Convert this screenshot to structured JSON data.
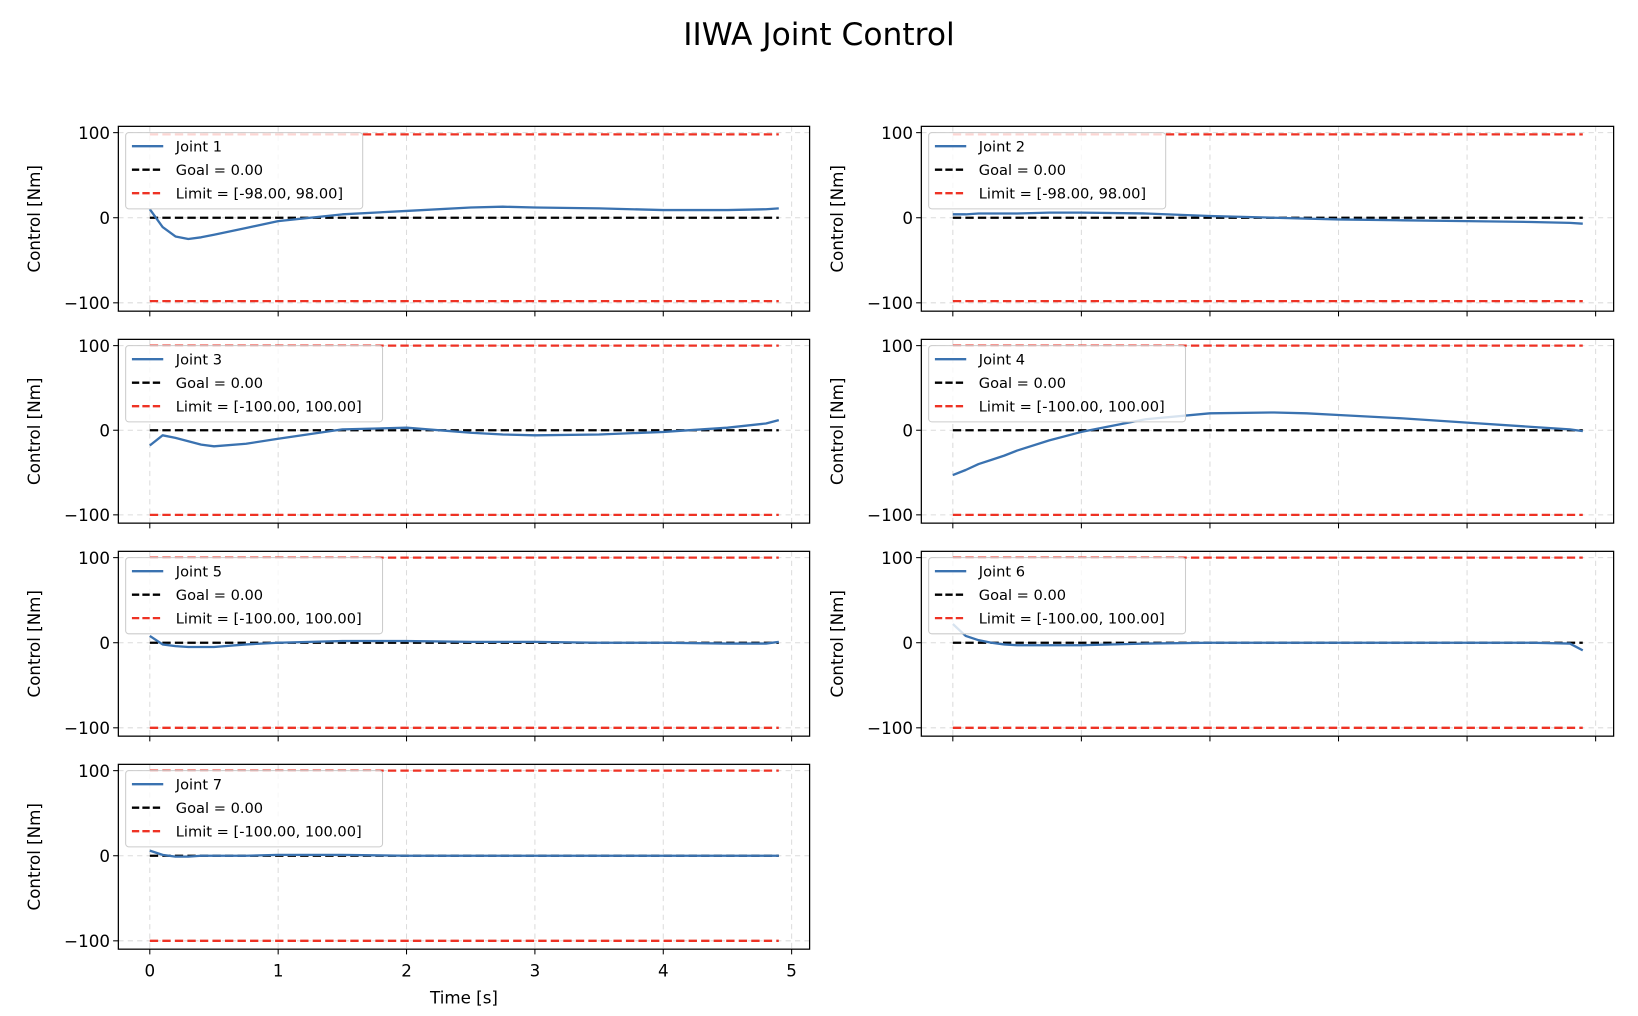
{
  "chart_data": {
    "title": "IIWA Joint Control",
    "type": "line",
    "xlabel": "Time [s]",
    "ylabel": "Control [Nm]",
    "xlim": [
      -0.245,
      5.14
    ],
    "ylim": [
      -109.8,
      107.4
    ],
    "xticks": [
      0,
      1,
      2,
      3,
      4,
      5
    ],
    "yticks": [
      100,
      0,
      -100
    ],
    "ytick_labels": [
      "100",
      "0",
      "−100"
    ],
    "grid": true,
    "legend_placement": "upper-left",
    "colors": {
      "series": "#3a72b0",
      "goal": "#000000",
      "limit": "#ee3224"
    },
    "x": [
      0,
      0.1,
      0.2,
      0.3,
      0.4,
      0.5,
      0.75,
      1,
      1.5,
      2,
      2.5,
      2.75,
      3,
      3.5,
      4,
      4.5,
      4.8,
      4.9
    ],
    "panels": [
      {
        "name": "Joint 1",
        "goal": 0,
        "goal_label": "Goal = 0.00",
        "limit": [
          -98,
          98
        ],
        "limit_label": "Limit = [-98.00, 98.00]",
        "values": [
          10,
          -11,
          -22,
          -25,
          -23,
          -20,
          -12,
          -4,
          4,
          8,
          12,
          13,
          12,
          11,
          9,
          9,
          10,
          11
        ]
      },
      {
        "name": "Joint 2",
        "goal": 0,
        "goal_label": "Goal = 0.00",
        "limit": [
          -98,
          98
        ],
        "limit_label": "Limit = [-98.00, 98.00]",
        "values": [
          4,
          4,
          5,
          5,
          5,
          5,
          6,
          6,
          5,
          2,
          0,
          -1,
          -2,
          -3,
          -4,
          -5,
          -6,
          -7
        ]
      },
      {
        "name": "Joint 3",
        "goal": 0,
        "goal_label": "Goal = 0.00",
        "limit": [
          -100,
          100
        ],
        "limit_label": "Limit = [-100.00, 100.00]",
        "values": [
          -18,
          -6,
          -9,
          -13,
          -17,
          -19,
          -16,
          -10,
          1,
          3,
          -3,
          -5,
          -6,
          -5,
          -2,
          3,
          8,
          12
        ]
      },
      {
        "name": "Joint 4",
        "goal": 0,
        "goal_label": "Goal = 0.00",
        "limit": [
          -100,
          100
        ],
        "limit_label": "Limit = [-100.00, 100.00]",
        "values": [
          -53,
          -47,
          -40,
          -35,
          -30,
          -24,
          -12,
          -2,
          13,
          20,
          21,
          20,
          18,
          14,
          9,
          4,
          1,
          -1
        ]
      },
      {
        "name": "Joint 5",
        "goal": 0,
        "goal_label": "Goal = 0.00",
        "limit": [
          -100,
          100
        ],
        "limit_label": "Limit = [-100.00, 100.00]",
        "values": [
          8,
          -2,
          -4,
          -5,
          -5,
          -5,
          -2,
          0,
          2,
          2,
          1,
          1,
          1,
          0,
          0,
          -1,
          -1,
          1
        ]
      },
      {
        "name": "Joint 6",
        "goal": 0,
        "goal_label": "Goal = 0.00",
        "limit": [
          -100,
          100
        ],
        "limit_label": "Limit = [-100.00, 100.00]",
        "values": [
          22,
          8,
          3,
          0,
          -2,
          -3,
          -3,
          -3,
          -1,
          0,
          0,
          0,
          0,
          0,
          0,
          0,
          -1,
          -9
        ]
      },
      {
        "name": "Joint 7",
        "goal": 0,
        "goal_label": "Goal = 0.00",
        "limit": [
          -100,
          100
        ],
        "limit_label": "Limit = [-100.00, 100.00]",
        "values": [
          6,
          1,
          -1,
          -1,
          0,
          0,
          0,
          1,
          1,
          0,
          0,
          0,
          0,
          0,
          0,
          0,
          0,
          0
        ]
      }
    ]
  }
}
